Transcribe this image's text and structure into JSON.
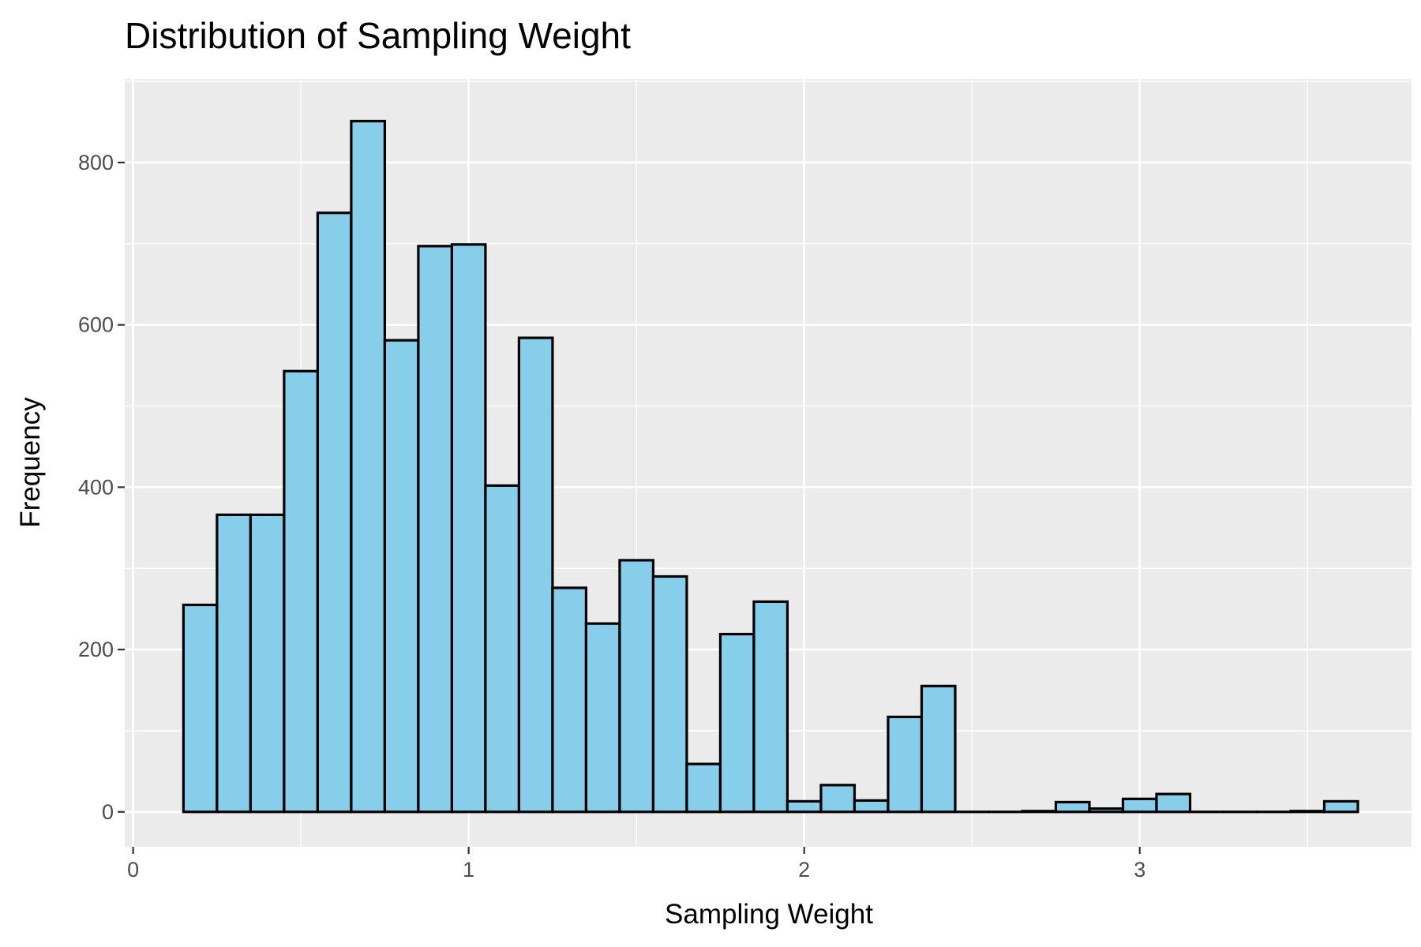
{
  "chart_data": {
    "type": "bar",
    "title": "Distribution of Sampling Weight",
    "xlabel": "Sampling Weight",
    "ylabel": "Frequency",
    "xlim": [
      -0.025,
      3.81
    ],
    "ylim": [
      -43,
      903
    ],
    "x_ticks": [
      0,
      1,
      2,
      3
    ],
    "y_ticks": [
      0,
      200,
      400,
      600,
      800
    ],
    "grid": true,
    "bin_width": 0.1,
    "fill_color": "#87ceeb",
    "edge_color": "#000000",
    "panel_color": "#ebebeb",
    "bins": [
      {
        "x0": 0.15,
        "x1": 0.25,
        "count": 255
      },
      {
        "x0": 0.25,
        "x1": 0.35,
        "count": 366
      },
      {
        "x0": 0.35,
        "x1": 0.45,
        "count": 366
      },
      {
        "x0": 0.45,
        "x1": 0.55,
        "count": 543
      },
      {
        "x0": 0.55,
        "x1": 0.65,
        "count": 738
      },
      {
        "x0": 0.65,
        "x1": 0.75,
        "count": 851
      },
      {
        "x0": 0.75,
        "x1": 0.85,
        "count": 581
      },
      {
        "x0": 0.85,
        "x1": 0.95,
        "count": 697
      },
      {
        "x0": 0.95,
        "x1": 1.05,
        "count": 699
      },
      {
        "x0": 1.05,
        "x1": 1.15,
        "count": 402
      },
      {
        "x0": 1.15,
        "x1": 1.25,
        "count": 584
      },
      {
        "x0": 1.25,
        "x1": 1.35,
        "count": 276
      },
      {
        "x0": 1.35,
        "x1": 1.45,
        "count": 232
      },
      {
        "x0": 1.45,
        "x1": 1.55,
        "count": 310
      },
      {
        "x0": 1.55,
        "x1": 1.65,
        "count": 290
      },
      {
        "x0": 1.65,
        "x1": 1.75,
        "count": 59
      },
      {
        "x0": 1.75,
        "x1": 1.85,
        "count": 219
      },
      {
        "x0": 1.85,
        "x1": 1.95,
        "count": 259
      },
      {
        "x0": 1.95,
        "x1": 2.05,
        "count": 13
      },
      {
        "x0": 2.05,
        "x1": 2.15,
        "count": 33
      },
      {
        "x0": 2.15,
        "x1": 2.25,
        "count": 14
      },
      {
        "x0": 2.25,
        "x1": 2.35,
        "count": 117
      },
      {
        "x0": 2.35,
        "x1": 2.45,
        "count": 155
      },
      {
        "x0": 2.45,
        "x1": 2.55,
        "count": 0
      },
      {
        "x0": 2.55,
        "x1": 2.65,
        "count": 0
      },
      {
        "x0": 2.65,
        "x1": 2.75,
        "count": 1
      },
      {
        "x0": 2.75,
        "x1": 2.85,
        "count": 12
      },
      {
        "x0": 2.85,
        "x1": 2.95,
        "count": 4
      },
      {
        "x0": 2.95,
        "x1": 3.05,
        "count": 16
      },
      {
        "x0": 3.05,
        "x1": 3.15,
        "count": 22
      },
      {
        "x0": 3.15,
        "x1": 3.25,
        "count": 0
      },
      {
        "x0": 3.25,
        "x1": 3.35,
        "count": 0
      },
      {
        "x0": 3.35,
        "x1": 3.45,
        "count": 0
      },
      {
        "x0": 3.45,
        "x1": 3.55,
        "count": 1
      },
      {
        "x0": 3.55,
        "x1": 3.65,
        "count": 13
      }
    ]
  }
}
